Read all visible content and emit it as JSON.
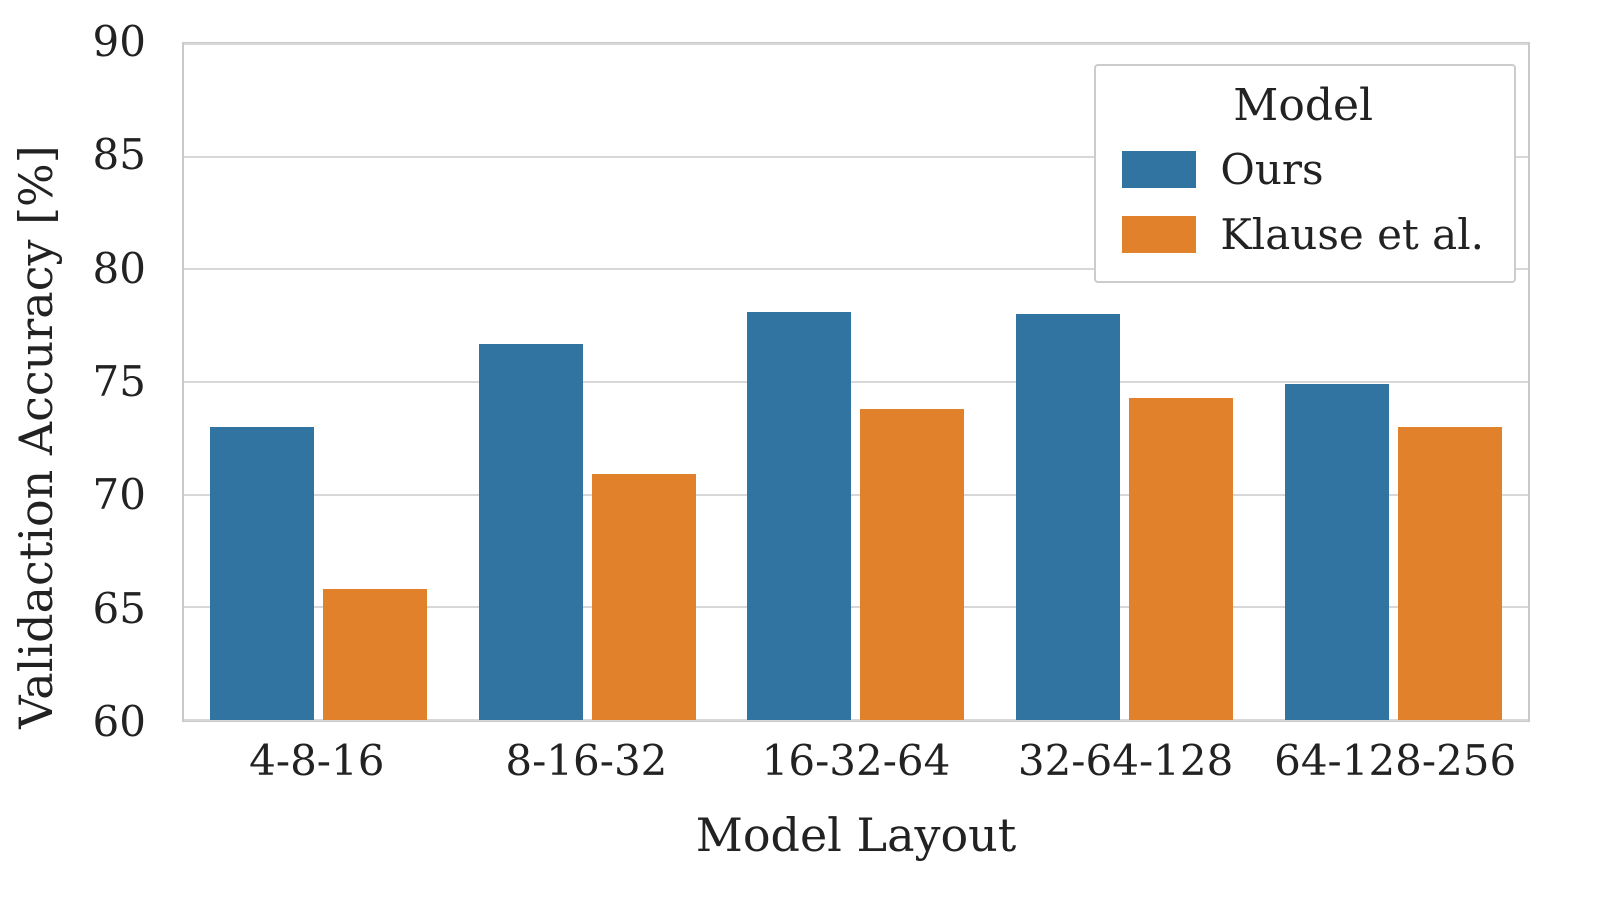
{
  "chart_data": {
    "type": "bar",
    "title": "",
    "xlabel": "Model Layout",
    "ylabel": "Validaction Accuracy [%]",
    "ylim": [
      60,
      90
    ],
    "yticks": [
      60,
      65,
      70,
      75,
      80,
      85,
      90
    ],
    "grid": true,
    "legend_position": "upper right",
    "legend_title": "Model",
    "categories": [
      "4-8-16",
      "8-16-32",
      "16-32-64",
      "32-64-128",
      "64-128-256"
    ],
    "series": [
      {
        "name": "Ours",
        "color": "#3274a1",
        "values": [
          73.0,
          76.7,
          78.1,
          78.0,
          74.9
        ]
      },
      {
        "name": "Klause et al.",
        "color": "#e1812c",
        "values": [
          65.8,
          70.9,
          73.8,
          74.3,
          73.0
        ]
      }
    ]
  }
}
